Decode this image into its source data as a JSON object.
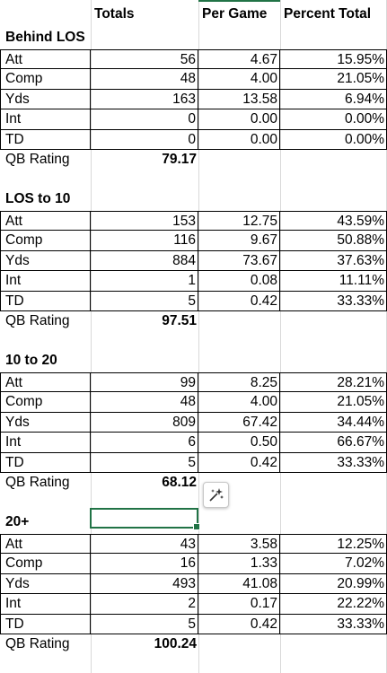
{
  "headers": {
    "blank": "",
    "totals": "Totals",
    "per_game": "Per Game",
    "percent_total": "Percent Total"
  },
  "sections": [
    {
      "title": "Behind LOS",
      "rows": [
        {
          "label": "Att",
          "total": "56",
          "per_game": "4.67",
          "pct": "15.95%"
        },
        {
          "label": "Comp",
          "total": "48",
          "per_game": "4.00",
          "pct": "21.05%"
        },
        {
          "label": "Yds",
          "total": "163",
          "per_game": "13.58",
          "pct": "6.94%"
        },
        {
          "label": "Int",
          "total": "0",
          "per_game": "0.00",
          "pct": "0.00%"
        },
        {
          "label": "TD",
          "total": "0",
          "per_game": "0.00",
          "pct": "0.00%"
        }
      ],
      "qb_label": "QB Rating",
      "qb_value": "79.17"
    },
    {
      "title": "LOS to 10",
      "rows": [
        {
          "label": "Att",
          "total": "153",
          "per_game": "12.75",
          "pct": "43.59%"
        },
        {
          "label": "Comp",
          "total": "116",
          "per_game": "9.67",
          "pct": "50.88%"
        },
        {
          "label": "Yds",
          "total": "884",
          "per_game": "73.67",
          "pct": "37.63%"
        },
        {
          "label": "Int",
          "total": "1",
          "per_game": "0.08",
          "pct": "11.11%"
        },
        {
          "label": "TD",
          "total": "5",
          "per_game": "0.42",
          "pct": "33.33%"
        }
      ],
      "qb_label": "QB Rating",
      "qb_value": "97.51"
    },
    {
      "title": "10 to 20",
      "rows": [
        {
          "label": "Att",
          "total": "99",
          "per_game": "8.25",
          "pct": "28.21%"
        },
        {
          "label": "Comp",
          "total": "48",
          "per_game": "4.00",
          "pct": "21.05%"
        },
        {
          "label": "Yds",
          "total": "809",
          "per_game": "67.42",
          "pct": "34.44%"
        },
        {
          "label": "Int",
          "total": "6",
          "per_game": "0.50",
          "pct": "66.67%"
        },
        {
          "label": "TD",
          "total": "5",
          "per_game": "0.42",
          "pct": "33.33%"
        }
      ],
      "qb_label": "QB Rating",
      "qb_value": "68.12"
    },
    {
      "title": "20+",
      "rows": [
        {
          "label": "Att",
          "total": "43",
          "per_game": "3.58",
          "pct": "12.25%"
        },
        {
          "label": "Comp",
          "total": "16",
          "per_game": "1.33",
          "pct": "7.02%"
        },
        {
          "label": "Yds",
          "total": "493",
          "per_game": "41.08",
          "pct": "20.99%"
        },
        {
          "label": "Int",
          "total": "2",
          "per_game": "0.17",
          "pct": "22.22%"
        },
        {
          "label": "TD",
          "total": "5",
          "per_game": "0.42",
          "pct": "33.33%"
        }
      ],
      "qb_label": "QB Rating",
      "qb_value": "100.24"
    }
  ],
  "quick_analysis": {
    "icon": "sparkle-wand-icon"
  },
  "colors": {
    "selection": "#217346",
    "gridline": "#d9d9d9"
  }
}
